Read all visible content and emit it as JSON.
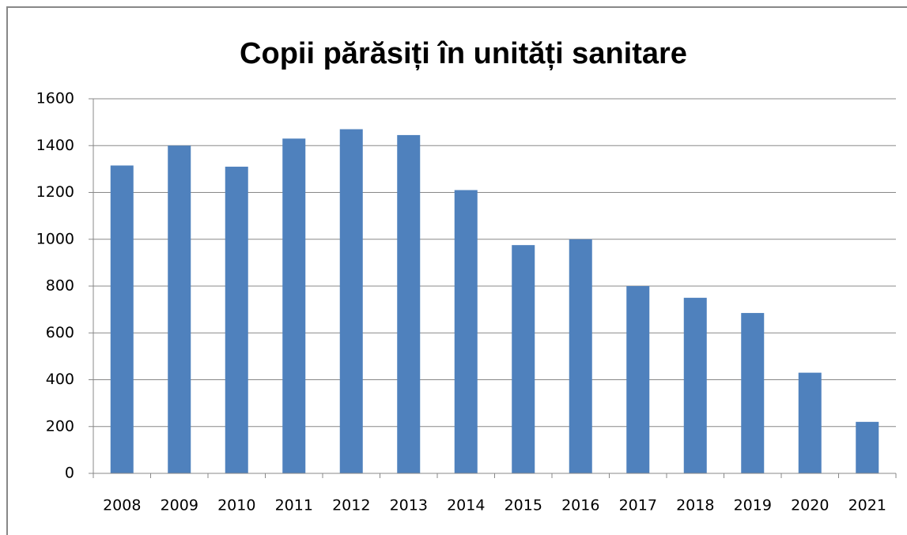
{
  "chart_data": {
    "type": "bar",
    "title": "Copii părăsiți în unități sanitare",
    "categories": [
      "2008",
      "2009",
      "2010",
      "2011",
      "2012",
      "2013",
      "2014",
      "2015",
      "2016",
      "2017",
      "2018",
      "2019",
      "2020",
      "2021"
    ],
    "values": [
      1315,
      1400,
      1310,
      1430,
      1470,
      1445,
      1210,
      975,
      1000,
      800,
      750,
      685,
      430,
      220
    ],
    "color": "#4f81bd",
    "ylim": [
      0,
      1600
    ],
    "yticks": [
      0,
      200,
      400,
      600,
      800,
      1000,
      1200,
      1400,
      1600
    ],
    "grid": true
  }
}
